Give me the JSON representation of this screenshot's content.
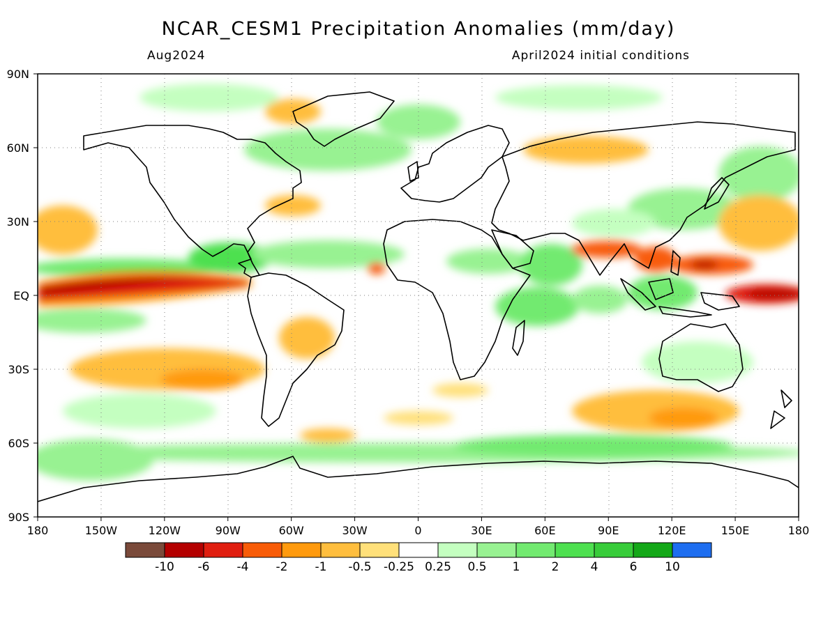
{
  "header": {
    "title": "NCAR_CESM1 Precipitation Anomalies (mm/day)",
    "valid_month": "Aug2024",
    "init_label": "April2024 initial conditions"
  },
  "axes": {
    "lat_labels": [
      "90N",
      "60N",
      "30N",
      "EQ",
      "30S",
      "60S",
      "90S"
    ],
    "lat_values": [
      90,
      60,
      30,
      0,
      -30,
      -60,
      -90
    ],
    "lon_labels": [
      "180",
      "150W",
      "120W",
      "90W",
      "60W",
      "30W",
      "0",
      "30E",
      "60E",
      "90E",
      "120E",
      "150E",
      "180"
    ],
    "lon_values": [
      -180,
      -150,
      -120,
      -90,
      -60,
      -30,
      0,
      30,
      60,
      90,
      120,
      150,
      180
    ]
  },
  "colorbar": {
    "colors": [
      "#7a4a3a",
      "#b40000",
      "#e01e10",
      "#f85c08",
      "#ff9a0e",
      "#ffbe3e",
      "#ffe07a",
      "#ffffff",
      "#c4ffc0",
      "#98f292",
      "#72ea70",
      "#4ee050",
      "#38cc3a",
      "#14a818",
      "#1e6ef0"
    ],
    "labels": [
      "-10",
      "-6",
      "-4",
      "-2",
      "-1",
      "-0.5",
      "-0.25",
      "0.25",
      "0.5",
      "1",
      "2",
      "4",
      "6",
      "10"
    ]
  },
  "map_data": {
    "projection": "cylindrical equidistant",
    "extent": {
      "lon": [
        -180,
        180
      ],
      "lat": [
        -90,
        90
      ]
    },
    "grid": "dotted",
    "anomaly_regions": [
      {
        "lon": [
          -180,
          -90
        ],
        "lat": [
          -2,
          8
        ],
        "value": -6,
        "note": "equatorial central/east Pacific dry band"
      },
      {
        "lon": [
          -180,
          -100
        ],
        "lat": [
          -5,
          3
        ],
        "value": -4
      },
      {
        "lon": [
          -180,
          -150
        ],
        "lat": [
          15,
          35
        ],
        "value": -1
      },
      {
        "lon": [
          -150,
          -85
        ],
        "lat": [
          -35,
          -20
        ],
        "value": -1
      },
      {
        "lon": [
          -120,
          -80
        ],
        "lat": [
          -32,
          -25
        ],
        "value": -2
      },
      {
        "lon": [
          75,
          110
        ],
        "lat": [
          12,
          22
        ],
        "value": -2
      },
      {
        "lon": [
          110,
          150
        ],
        "lat": [
          10,
          22
        ],
        "value": -2
      },
      {
        "lon": [
          145,
          180
        ],
        "lat": [
          -3,
          3
        ],
        "value": -4
      },
      {
        "lon": [
          85,
          160
        ],
        "lat": [
          -50,
          -35
        ],
        "value": -1
      },
      {
        "lon": [
          60,
          90
        ],
        "lat": [
          0,
          10
        ],
        "value": 2
      },
      {
        "lon": [
          -80,
          -20
        ],
        "lat": [
          12,
          25
        ],
        "value": 1
      },
      {
        "lon": [
          -180,
          180
        ],
        "lat": [
          -60,
          -55
        ],
        "value": 0.5
      },
      {
        "lon": [
          40,
          80
        ],
        "lat": [
          -10,
          5
        ],
        "value": 2
      }
    ]
  }
}
